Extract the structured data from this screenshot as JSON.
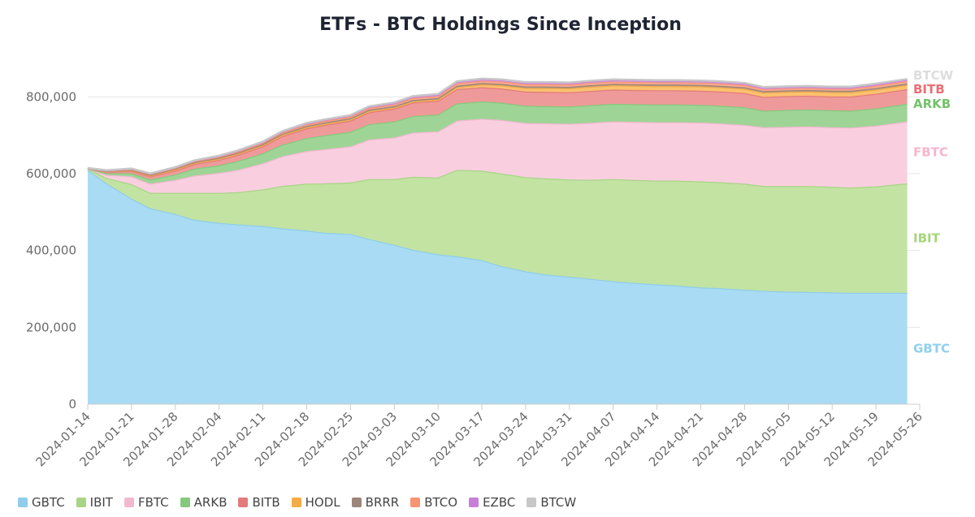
{
  "chart_data": {
    "type": "area",
    "stacked": true,
    "title": "ETFs - BTC Holdings Since Inception",
    "xlabel": "",
    "ylabel": "",
    "ylim": [
      0,
      900000
    ],
    "yticks": [
      0,
      200000,
      400000,
      600000,
      800000
    ],
    "ytick_labels": [
      "0",
      "200,000",
      "400,000",
      "600,000",
      "800,000"
    ],
    "xticks": [
      "2024-01-14",
      "2024-01-21",
      "2024-01-28",
      "2024-02-04",
      "2024-02-11",
      "2024-02-18",
      "2024-02-25",
      "2024-03-03",
      "2024-03-10",
      "2024-03-17",
      "2024-03-24",
      "2024-03-31",
      "2024-04-07",
      "2024-04-14",
      "2024-04-21",
      "2024-04-28",
      "2024-05-05",
      "2024-05-12",
      "2024-05-19",
      "2024-05-26"
    ],
    "x_range": [
      "2024-01-14",
      "2024-05-26"
    ],
    "x": [
      "2024-01-14",
      "2024-01-17",
      "2024-01-21",
      "2024-01-24",
      "2024-01-28",
      "2024-01-31",
      "2024-02-04",
      "2024-02-07",
      "2024-02-11",
      "2024-02-14",
      "2024-02-18",
      "2024-02-21",
      "2024-02-25",
      "2024-02-28",
      "2024-03-03",
      "2024-03-06",
      "2024-03-10",
      "2024-03-13",
      "2024-03-17",
      "2024-03-20",
      "2024-03-24",
      "2024-03-27",
      "2024-03-31",
      "2024-04-03",
      "2024-04-07",
      "2024-04-10",
      "2024-04-14",
      "2024-04-17",
      "2024-04-21",
      "2024-04-24",
      "2024-04-28",
      "2024-05-01",
      "2024-05-05",
      "2024-05-08",
      "2024-05-12",
      "2024-05-15",
      "2024-05-19",
      "2024-05-24"
    ],
    "series": [
      {
        "name": "GBTC",
        "color": "#a9dcf4",
        "line": "#8fcdea",
        "label_color": "#8fd0ee",
        "values": [
          610000,
          575000,
          535000,
          510000,
          495000,
          480000,
          472000,
          468000,
          464000,
          458000,
          452000,
          446000,
          443000,
          430000,
          415000,
          402000,
          390000,
          385000,
          375000,
          360000,
          346000,
          338000,
          332000,
          327000,
          320000,
          316000,
          312000,
          309000,
          304000,
          302000,
          298000,
          295000,
          293000,
          292000,
          291000,
          290000,
          290000,
          290000
        ]
      },
      {
        "name": "IBIT",
        "color": "#c3e3a3",
        "line": "#a8d585",
        "label_color": "#a6d57c",
        "values": [
          3000,
          14000,
          38000,
          40000,
          55000,
          70000,
          78000,
          84000,
          95000,
          110000,
          122000,
          129000,
          134000,
          156000,
          171000,
          190000,
          200000,
          225000,
          233000,
          241000,
          245000,
          250000,
          253000,
          257000,
          266000,
          268000,
          270000,
          273000,
          276000,
          276000,
          276000,
          273000,
          275000,
          276000,
          275000,
          274000,
          277000,
          285000
        ]
      },
      {
        "name": "FBTC",
        "color": "#f9cfe0",
        "line": "#f2b8cf",
        "label_color": "#f6b5cd",
        "values": [
          500,
          8000,
          20000,
          24000,
          34000,
          45000,
          52000,
          58000,
          68000,
          77000,
          85000,
          89000,
          94000,
          103000,
          108000,
          115000,
          120000,
          128000,
          135000,
          139000,
          141000,
          143000,
          145000,
          148000,
          150000,
          151000,
          152000,
          152000,
          153000,
          153000,
          153000,
          153000,
          154000,
          155000,
          155000,
          156000,
          158000,
          161000
        ]
      },
      {
        "name": "ARKB",
        "color": "#9ed596",
        "line": "#86c87d",
        "label_color": "#73c26b",
        "values": [
          400,
          4000,
          8000,
          11000,
          14000,
          18000,
          20000,
          23000,
          26000,
          30000,
          34000,
          36000,
          38000,
          40000,
          42000,
          43000,
          44000,
          45000,
          45000,
          45000,
          45000,
          45000,
          45000,
          46000,
          46000,
          46000,
          46000,
          46000,
          46000,
          46000,
          46000,
          43000,
          44000,
          44000,
          44000,
          44000,
          45000,
          46000
        ]
      },
      {
        "name": "BITB",
        "color": "#ef9a9a",
        "line": "#e37b7b",
        "label_color": "#ea6f74",
        "values": [
          300,
          4000,
          6000,
          8000,
          10000,
          12000,
          14000,
          16000,
          18000,
          22000,
          25000,
          27000,
          29000,
          31000,
          33000,
          35000,
          36000,
          37000,
          37000,
          37000,
          37000,
          37000,
          37000,
          37000,
          37000,
          37000,
          37000,
          37000,
          37000,
          37000,
          37000,
          36000,
          36000,
          36000,
          36000,
          37000,
          38000,
          38000
        ]
      },
      {
        "name": "HODL",
        "color": "#fbc16f",
        "line": "#f3ac47",
        "label_color": "#f3ac47",
        "values": [
          100,
          1000,
          2000,
          2000,
          3000,
          3000,
          3000,
          3000,
          3000,
          3000,
          3000,
          3000,
          3000,
          3000,
          3000,
          3000,
          3000,
          5000,
          7000,
          8000,
          9000,
          10000,
          10000,
          11000,
          11000,
          11000,
          11000,
          11000,
          11000,
          11000,
          11000,
          11000,
          11000,
          11000,
          11000,
          11000,
          11000,
          11000
        ]
      },
      {
        "name": "BRRR",
        "color": "#b09a8f",
        "line": "#9c857a",
        "label_color": "#9c857a",
        "values": [
          100,
          1000,
          1500,
          2000,
          2000,
          2000,
          2500,
          2500,
          3000,
          3000,
          3000,
          3500,
          3500,
          4000,
          4000,
          4000,
          4000,
          4000,
          4000,
          4000,
          4000,
          4000,
          4000,
          4000,
          4000,
          4000,
          4000,
          4000,
          4000,
          4000,
          4000,
          4000,
          4000,
          4000,
          4000,
          4000,
          4000,
          4000
        ]
      },
      {
        "name": "BTCO",
        "color": "#ffab91",
        "line": "#f89472",
        "label_color": "#f89472",
        "values": [
          100,
          1000,
          1500,
          2000,
          2000,
          2500,
          2500,
          3000,
          3000,
          3500,
          4000,
          4000,
          4000,
          4000,
          4500,
          5000,
          5000,
          6000,
          6000,
          6000,
          6000,
          6000,
          6000,
          6000,
          6000,
          6000,
          6000,
          6000,
          6000,
          6000,
          6000,
          5000,
          5000,
          5000,
          5000,
          5000,
          6000,
          6000
        ]
      },
      {
        "name": "EZBC",
        "color": "#d59be3",
        "line": "#c77fd8",
        "label_color": "#c77fd8",
        "values": [
          100,
          500,
          1000,
          1000,
          1500,
          1500,
          2000,
          2000,
          2500,
          2500,
          3000,
          3000,
          3000,
          3500,
          3500,
          3500,
          4000,
          4000,
          4000,
          4000,
          4000,
          4000,
          4000,
          4000,
          4000,
          4000,
          4000,
          4000,
          4000,
          4000,
          4000,
          4000,
          4000,
          4000,
          4000,
          4000,
          4000,
          4000
        ]
      },
      {
        "name": "BTCW",
        "color": "#dddddd",
        "line": "#c7c7c7",
        "label_color": "#dddddd",
        "values": [
          100,
          500,
          500,
          500,
          500,
          500,
          1000,
          1000,
          1000,
          1000,
          1000,
          1000,
          1000,
          1000,
          1500,
          1500,
          1500,
          1500,
          1500,
          1500,
          1500,
          1500,
          1500,
          1500,
          1500,
          1500,
          1500,
          1500,
          1500,
          1500,
          1500,
          1500,
          1500,
          1500,
          1500,
          1500,
          1500,
          1500
        ]
      }
    ],
    "end_labels": [
      {
        "series": "GBTC",
        "text": "GBTC"
      },
      {
        "series": "IBIT",
        "text": "IBIT"
      },
      {
        "series": "FBTC",
        "text": "FBTC"
      },
      {
        "series": "ARKB",
        "text": "ARKB"
      },
      {
        "series": "BITB",
        "text": "BITB"
      },
      {
        "series": "BTCW",
        "text": "BTCW"
      }
    ],
    "grid": true,
    "legend_position": "bottom-left"
  }
}
